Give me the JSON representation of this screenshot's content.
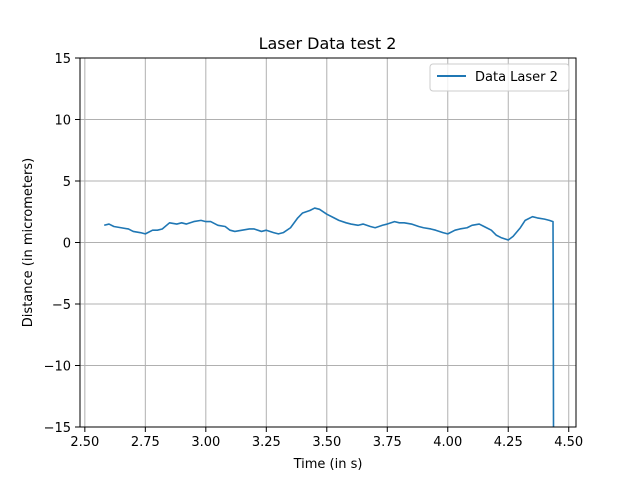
{
  "chart_data": {
    "type": "line",
    "title": "Laser Data test 2",
    "xlabel": "Time (in s)",
    "ylabel": "Distance (in micrometers)",
    "xlim": [
      2.48,
      4.53
    ],
    "ylim": [
      -15,
      15
    ],
    "xticks": [
      2.5,
      2.75,
      3.0,
      3.25,
      3.5,
      3.75,
      4.0,
      4.25,
      4.5
    ],
    "xtick_labels": [
      "2.50",
      "2.75",
      "3.00",
      "3.25",
      "3.50",
      "3.75",
      "4.00",
      "4.25",
      "4.50"
    ],
    "yticks": [
      -15,
      -10,
      -5,
      0,
      5,
      10,
      15
    ],
    "ytick_labels": [
      "−15",
      "−10",
      "−5",
      "0",
      "5",
      "10",
      "15"
    ],
    "grid": true,
    "legend": "top-right",
    "series": [
      {
        "name": "Data Laser 2",
        "color": "#1f77b4",
        "x": [
          2.58,
          2.6,
          2.62,
          2.65,
          2.68,
          2.7,
          2.73,
          2.75,
          2.78,
          2.8,
          2.82,
          2.85,
          2.88,
          2.9,
          2.92,
          2.95,
          2.98,
          3.0,
          3.02,
          3.05,
          3.08,
          3.1,
          3.12,
          3.15,
          3.18,
          3.2,
          3.23,
          3.25,
          3.28,
          3.3,
          3.32,
          3.35,
          3.38,
          3.4,
          3.43,
          3.45,
          3.47,
          3.5,
          3.53,
          3.55,
          3.58,
          3.6,
          3.63,
          3.65,
          3.68,
          3.7,
          3.73,
          3.75,
          3.78,
          3.8,
          3.82,
          3.85,
          3.88,
          3.9,
          3.93,
          3.95,
          3.98,
          4.0,
          4.03,
          4.05,
          4.08,
          4.1,
          4.13,
          4.15,
          4.18,
          4.2,
          4.22,
          4.25,
          4.27,
          4.3,
          4.32,
          4.35,
          4.37,
          4.4,
          4.42,
          4.435,
          4.436,
          4.437
        ],
        "y": [
          1.4,
          1.5,
          1.3,
          1.2,
          1.1,
          0.9,
          0.8,
          0.7,
          1.0,
          1.0,
          1.1,
          1.6,
          1.5,
          1.6,
          1.5,
          1.7,
          1.8,
          1.7,
          1.7,
          1.4,
          1.3,
          1.0,
          0.9,
          1.0,
          1.1,
          1.1,
          0.9,
          1.0,
          0.8,
          0.7,
          0.8,
          1.2,
          2.0,
          2.4,
          2.6,
          2.8,
          2.7,
          2.3,
          2.0,
          1.8,
          1.6,
          1.5,
          1.4,
          1.5,
          1.3,
          1.2,
          1.4,
          1.5,
          1.7,
          1.6,
          1.6,
          1.5,
          1.3,
          1.2,
          1.1,
          1.0,
          0.8,
          0.7,
          1.0,
          1.1,
          1.2,
          1.4,
          1.5,
          1.3,
          1.0,
          0.6,
          0.4,
          0.2,
          0.5,
          1.2,
          1.8,
          2.1,
          2.0,
          1.9,
          1.8,
          1.7,
          -5.0,
          -15.0
        ]
      }
    ]
  }
}
